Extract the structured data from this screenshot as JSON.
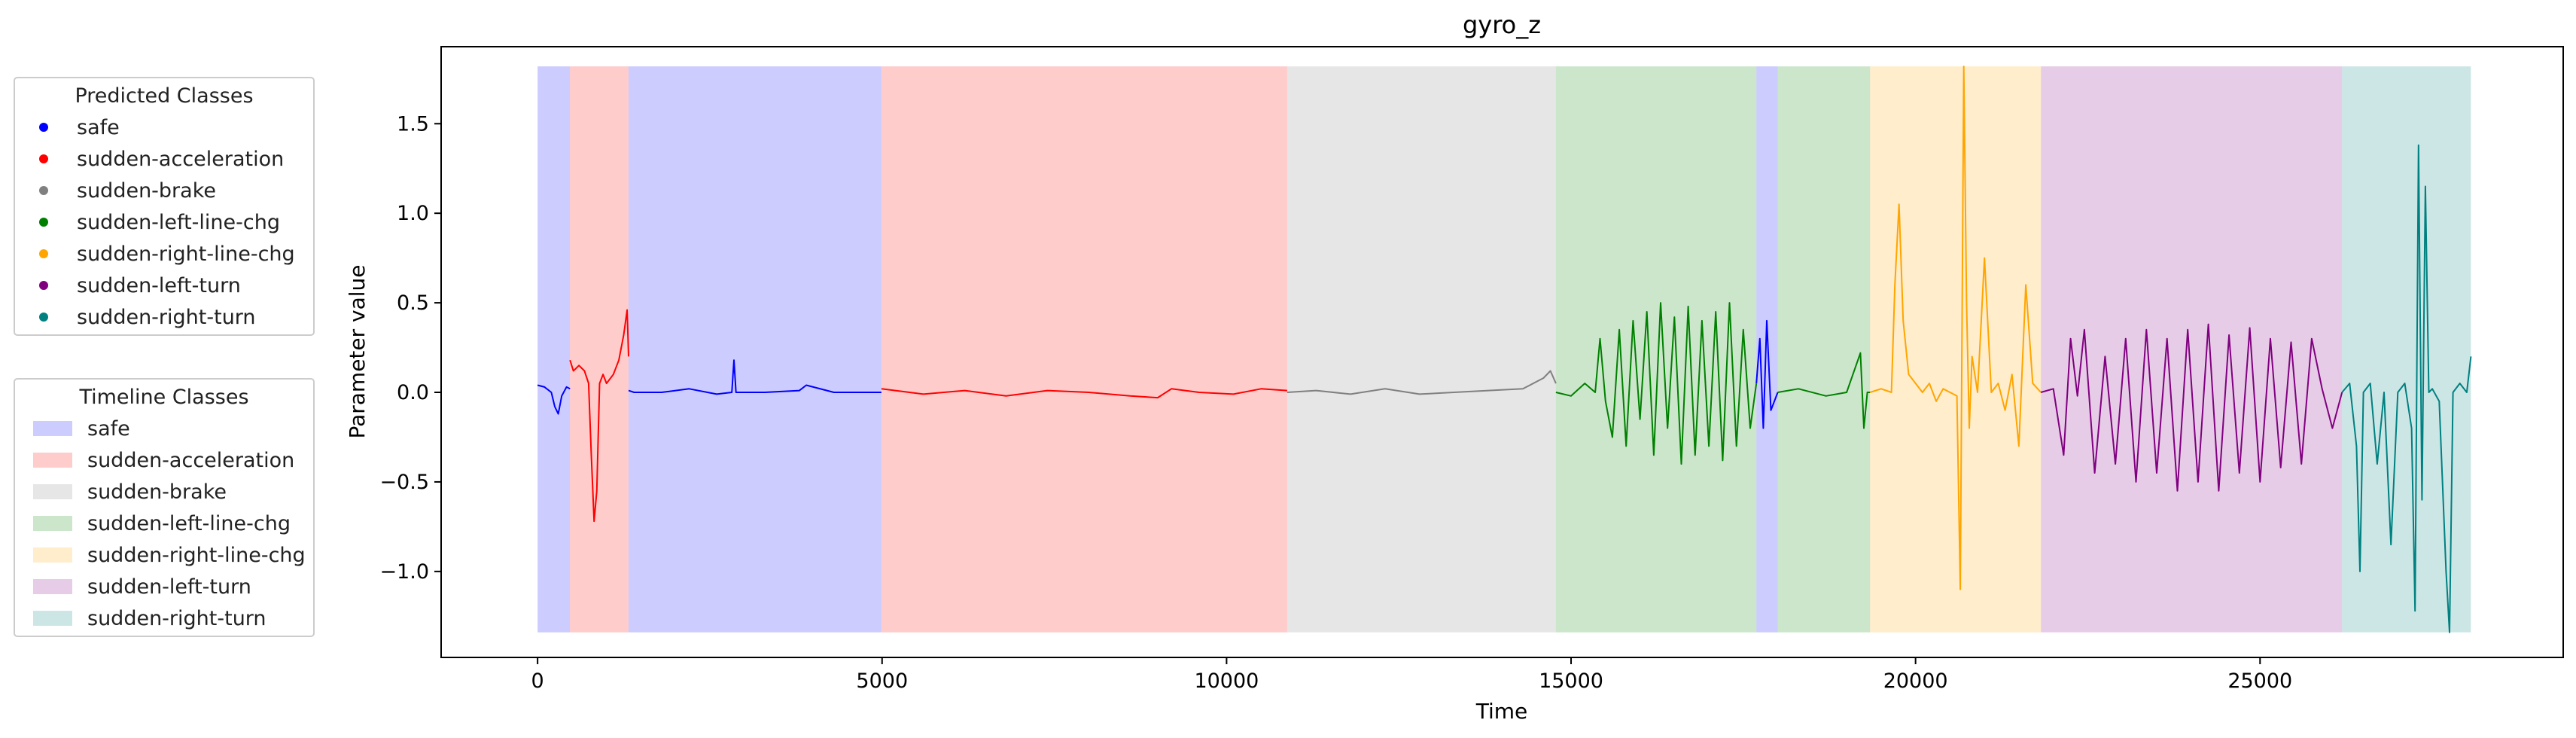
{
  "chart_data": {
    "type": "line",
    "title": "gyro_z",
    "xlabel": "Time",
    "ylabel": "Parameter value",
    "xlim": [
      -1400,
      29400
    ],
    "ylim": [
      -1.48,
      1.93
    ],
    "xticks": [
      0,
      5000,
      10000,
      15000,
      20000,
      25000
    ],
    "xtick_labels": [
      "0",
      "5000",
      "10000",
      "15000",
      "20000",
      "25000"
    ],
    "yticks": [
      -1.0,
      -0.5,
      0.0,
      0.5,
      1.0,
      1.5
    ],
    "ytick_labels": [
      "−1.0",
      "−0.5",
      "0.0",
      "0.5",
      "1.0",
      "1.5"
    ],
    "grid": false,
    "class_colors": {
      "safe": "#0000ff",
      "sudden-acceleration": "#ff0000",
      "sudden-brake": "#808080",
      "sudden-left-line-chg": "#008000",
      "sudden-right-line-chg": "#ffa500",
      "sudden-left-turn": "#800080",
      "sudden-right-turn": "#008080"
    },
    "timeline_band_ymax": 1.82,
    "timeline_band_ymin": -1.34,
    "timeline": [
      {
        "start": 0,
        "end": 470,
        "class": "safe"
      },
      {
        "start": 470,
        "end": 1320,
        "class": "sudden-acceleration"
      },
      {
        "start": 1320,
        "end": 4990,
        "class": "safe"
      },
      {
        "start": 4990,
        "end": 10880,
        "class": "sudden-acceleration"
      },
      {
        "start": 10880,
        "end": 14780,
        "class": "sudden-brake"
      },
      {
        "start": 14780,
        "end": 17690,
        "class": "sudden-left-line-chg"
      },
      {
        "start": 17690,
        "end": 18000,
        "class": "safe"
      },
      {
        "start": 18000,
        "end": 19340,
        "class": "sudden-left-line-chg"
      },
      {
        "start": 19340,
        "end": 21820,
        "class": "sudden-right-line-chg"
      },
      {
        "start": 21820,
        "end": 26190,
        "class": "sudden-left-turn"
      },
      {
        "start": 26190,
        "end": 28060,
        "class": "sudden-right-turn"
      }
    ],
    "series": [
      {
        "class": "safe",
        "x": [
          0,
          100,
          200,
          250,
          300,
          350,
          420,
          470
        ],
        "y": [
          0.04,
          0.03,
          0.0,
          -0.08,
          -0.12,
          -0.02,
          0.03,
          0.02
        ]
      },
      {
        "class": "sudden-acceleration",
        "x": [
          470,
          520,
          600,
          680,
          740,
          780,
          820,
          860,
          900,
          950,
          1000,
          1100,
          1180,
          1250,
          1300,
          1320
        ],
        "y": [
          0.18,
          0.12,
          0.15,
          0.12,
          0.05,
          -0.35,
          -0.72,
          -0.55,
          0.05,
          0.1,
          0.05,
          0.1,
          0.18,
          0.32,
          0.46,
          0.2
        ]
      },
      {
        "class": "safe",
        "x": [
          1320,
          1400,
          1800,
          2200,
          2600,
          2820,
          2850,
          2880,
          3300,
          3800,
          3900,
          4300,
          4990
        ],
        "y": [
          0.01,
          0.0,
          0.0,
          0.02,
          -0.01,
          0.0,
          0.18,
          0.0,
          0.0,
          0.01,
          0.04,
          0.0,
          0.0
        ]
      },
      {
        "class": "sudden-acceleration",
        "x": [
          4990,
          5600,
          6200,
          6800,
          7400,
          8000,
          8600,
          9000,
          9200,
          9600,
          10100,
          10500,
          10880
        ],
        "y": [
          0.02,
          -0.01,
          0.01,
          -0.02,
          0.01,
          0.0,
          -0.02,
          -0.03,
          0.02,
          0.0,
          -0.01,
          0.02,
          0.01
        ]
      },
      {
        "class": "sudden-brake",
        "x": [
          10880,
          11300,
          11800,
          12300,
          12800,
          13300,
          13800,
          14300,
          14600,
          14700,
          14780
        ],
        "y": [
          0.0,
          0.01,
          -0.01,
          0.02,
          -0.01,
          0.0,
          0.01,
          0.02,
          0.08,
          0.12,
          0.05
        ]
      },
      {
        "class": "sudden-left-line-chg",
        "x": [
          14780,
          15000,
          15200,
          15350,
          15420,
          15500,
          15600,
          15700,
          15800,
          15900,
          16000,
          16100,
          16200,
          16300,
          16400,
          16500,
          16600,
          16700,
          16800,
          16900,
          17000,
          17100,
          17200,
          17300,
          17400,
          17500,
          17600,
          17690
        ],
        "y": [
          0.0,
          -0.02,
          0.05,
          0.0,
          0.3,
          -0.05,
          -0.25,
          0.35,
          -0.3,
          0.4,
          -0.15,
          0.45,
          -0.35,
          0.5,
          -0.2,
          0.42,
          -0.4,
          0.48,
          -0.35,
          0.4,
          -0.3,
          0.45,
          -0.38,
          0.5,
          -0.3,
          0.35,
          -0.2,
          0.05
        ]
      },
      {
        "class": "safe",
        "x": [
          17690,
          17740,
          17790,
          17840,
          17900,
          18000
        ],
        "y": [
          0.05,
          0.3,
          -0.2,
          0.4,
          -0.1,
          0.0
        ]
      },
      {
        "class": "sudden-left-line-chg",
        "x": [
          18000,
          18300,
          18700,
          19000,
          19200,
          19250,
          19300,
          19340
        ],
        "y": [
          0.0,
          0.02,
          -0.02,
          0.0,
          0.22,
          -0.2,
          0.0,
          0.0
        ]
      },
      {
        "class": "sudden-right-line-chg",
        "x": [
          19340,
          19500,
          19650,
          19700,
          19760,
          19820,
          19900,
          20000,
          20100,
          20200,
          20300,
          20400,
          20500,
          20600,
          20650,
          20700,
          20740,
          20780,
          20820,
          20900,
          21000,
          21100,
          21200,
          21300,
          21400,
          21500,
          21600,
          21700,
          21820
        ],
        "y": [
          0.0,
          0.02,
          0.0,
          0.6,
          1.05,
          0.4,
          0.1,
          0.05,
          0.0,
          0.05,
          -0.05,
          0.02,
          0.0,
          -0.02,
          -1.1,
          1.82,
          0.5,
          -0.2,
          0.2,
          0.0,
          0.75,
          0.0,
          0.05,
          -0.1,
          0.1,
          -0.3,
          0.6,
          0.05,
          0.0
        ]
      },
      {
        "class": "sudden-left-turn",
        "x": [
          21820,
          22000,
          22150,
          22250,
          22350,
          22450,
          22600,
          22750,
          22900,
          23050,
          23200,
          23350,
          23500,
          23650,
          23800,
          23950,
          24100,
          24250,
          24400,
          24550,
          24700,
          24850,
          25000,
          25150,
          25300,
          25450,
          25600,
          25750,
          25900,
          26050,
          26190
        ],
        "y": [
          0.0,
          0.02,
          -0.35,
          0.3,
          -0.02,
          0.35,
          -0.45,
          0.2,
          -0.4,
          0.3,
          -0.5,
          0.35,
          -0.45,
          0.3,
          -0.55,
          0.35,
          -0.5,
          0.38,
          -0.55,
          0.32,
          -0.45,
          0.36,
          -0.5,
          0.3,
          -0.42,
          0.28,
          -0.4,
          0.3,
          0.02,
          -0.2,
          0.0
        ]
      },
      {
        "class": "sudden-right-turn",
        "x": [
          26190,
          26300,
          26400,
          26450,
          26500,
          26600,
          26700,
          26800,
          26900,
          27000,
          27100,
          27200,
          27250,
          27300,
          27350,
          27400,
          27450,
          27500,
          27600,
          27700,
          27750,
          27800,
          27900,
          28000,
          28060
        ],
        "y": [
          0.0,
          0.05,
          -0.3,
          -1.0,
          0.0,
          0.05,
          -0.4,
          0.0,
          -0.85,
          0.0,
          0.05,
          -0.2,
          -1.22,
          1.38,
          -0.6,
          1.15,
          0.0,
          0.02,
          -0.05,
          -1.0,
          -1.34,
          0.0,
          0.05,
          0.0,
          0.2
        ]
      }
    ]
  },
  "legend_predicted": {
    "title": "Predicted Classes",
    "items": [
      {
        "label": "safe",
        "color": "#0000ff"
      },
      {
        "label": "sudden-acceleration",
        "color": "#ff0000"
      },
      {
        "label": "sudden-brake",
        "color": "#808080"
      },
      {
        "label": "sudden-left-line-chg",
        "color": "#008000"
      },
      {
        "label": "sudden-right-line-chg",
        "color": "#ffa500"
      },
      {
        "label": "sudden-left-turn",
        "color": "#800080"
      },
      {
        "label": "sudden-right-turn",
        "color": "#008080"
      }
    ]
  },
  "legend_timeline": {
    "title": "Timeline Classes",
    "items": [
      {
        "label": "safe",
        "color": "#0000ff"
      },
      {
        "label": "sudden-acceleration",
        "color": "#ff0000"
      },
      {
        "label": "sudden-brake",
        "color": "#808080"
      },
      {
        "label": "sudden-left-line-chg",
        "color": "#008000"
      },
      {
        "label": "sudden-right-line-chg",
        "color": "#ffa500"
      },
      {
        "label": "sudden-left-turn",
        "color": "#800080"
      },
      {
        "label": "sudden-right-turn",
        "color": "#008080"
      }
    ]
  }
}
